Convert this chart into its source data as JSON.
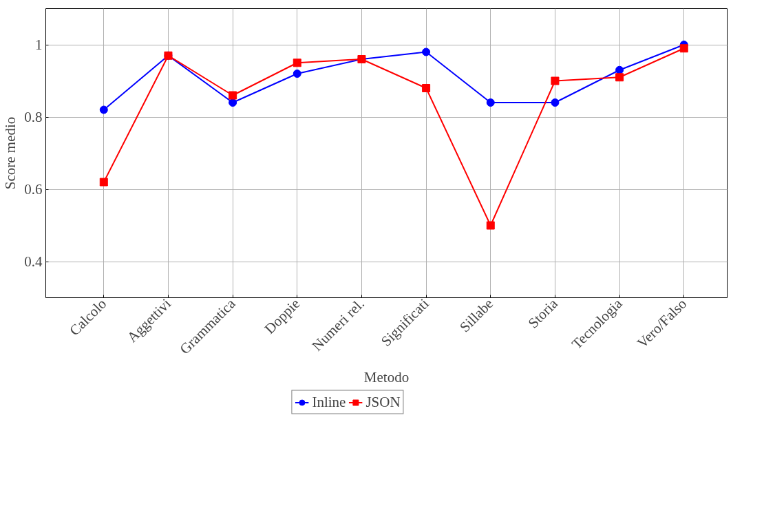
{
  "chart_data": {
    "type": "line",
    "xlabel": "Metodo",
    "ylabel": "Score medio",
    "categories": [
      "Calcolo",
      "Aggettivi",
      "Grammatica",
      "Doppie",
      "Numeri rel.",
      "Significati",
      "Sillabe",
      "Storia",
      "Tecnologia",
      "Vero/Falso"
    ],
    "series": [
      {
        "name": "Inline",
        "color": "#0000ff",
        "marker": "circle",
        "values": [
          0.82,
          0.97,
          0.84,
          0.92,
          0.96,
          0.98,
          0.84,
          0.84,
          0.93,
          1.0
        ]
      },
      {
        "name": "JSON",
        "color": "#ff0000",
        "marker": "square",
        "values": [
          0.62,
          0.97,
          0.86,
          0.95,
          0.96,
          0.88,
          0.5,
          0.9,
          0.91,
          0.99
        ]
      }
    ],
    "ylim": [
      0.3,
      1.1
    ],
    "yticks": [
      0.4,
      0.6,
      0.8,
      1
    ],
    "grid": true,
    "legend": "bottom",
    "line_style": "solid"
  }
}
